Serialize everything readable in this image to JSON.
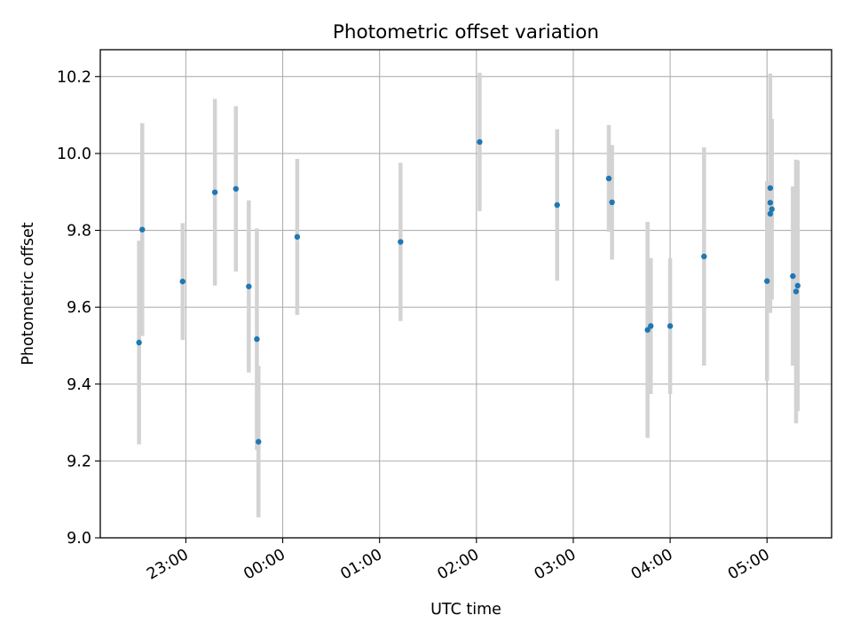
{
  "chart_data": {
    "type": "scatter",
    "title": "Photometric offset variation",
    "xlabel": "UTC time",
    "ylabel": "Photometric offset",
    "ylim": [
      9.0,
      10.27
    ],
    "xlim": [
      "22:07",
      "05:40"
    ],
    "x_ticks": [
      "23:00",
      "00:00",
      "01:00",
      "02:00",
      "03:00",
      "04:00",
      "05:00"
    ],
    "y_ticks": [
      "9.0",
      "9.2",
      "9.4",
      "9.6",
      "9.8",
      "10.0",
      "10.2"
    ],
    "grid": true,
    "marker_color": "#1f77b4",
    "errorbar_color": "#d3d3d3",
    "points": [
      {
        "t": "22:31",
        "y": 9.508,
        "err": 0.265
      },
      {
        "t": "22:33",
        "y": 9.802,
        "err": 0.277
      },
      {
        "t": "22:58",
        "y": 9.667,
        "err": 0.152
      },
      {
        "t": "23:18",
        "y": 9.899,
        "err": 0.243
      },
      {
        "t": "23:31",
        "y": 9.908,
        "err": 0.215
      },
      {
        "t": "23:39",
        "y": 9.654,
        "err": 0.224
      },
      {
        "t": "23:44",
        "y": 9.517,
        "err": 0.288
      },
      {
        "t": "23:45",
        "y": 9.25,
        "err": 0.197
      },
      {
        "t": "00:09",
        "y": 9.783,
        "err": 0.203
      },
      {
        "t": "01:13",
        "y": 9.77,
        "err": 0.206
      },
      {
        "t": "02:02",
        "y": 10.03,
        "err": 0.18
      },
      {
        "t": "02:50",
        "y": 9.866,
        "err": 0.197
      },
      {
        "t": "03:22",
        "y": 9.935,
        "err": 0.139
      },
      {
        "t": "03:24",
        "y": 9.873,
        "err": 0.149
      },
      {
        "t": "03:46",
        "y": 9.541,
        "err": 0.281
      },
      {
        "t": "03:48",
        "y": 9.551,
        "err": 0.177
      },
      {
        "t": "04:00",
        "y": 9.551,
        "err": 0.177
      },
      {
        "t": "04:21",
        "y": 9.732,
        "err": 0.284
      },
      {
        "t": "05:00",
        "y": 9.668,
        "err": 0.26
      },
      {
        "t": "05:02",
        "y": 9.91,
        "err": 0.298
      },
      {
        "t": "05:02",
        "y": 9.872,
        "err": 0.218
      },
      {
        "t": "05:02",
        "y": 9.843,
        "err": 0.258
      },
      {
        "t": "05:03",
        "y": 9.855,
        "err": 0.235
      },
      {
        "t": "05:16",
        "y": 9.681,
        "err": 0.233
      },
      {
        "t": "05:18",
        "y": 9.641,
        "err": 0.343
      },
      {
        "t": "05:19",
        "y": 9.656,
        "err": 0.326
      }
    ]
  }
}
